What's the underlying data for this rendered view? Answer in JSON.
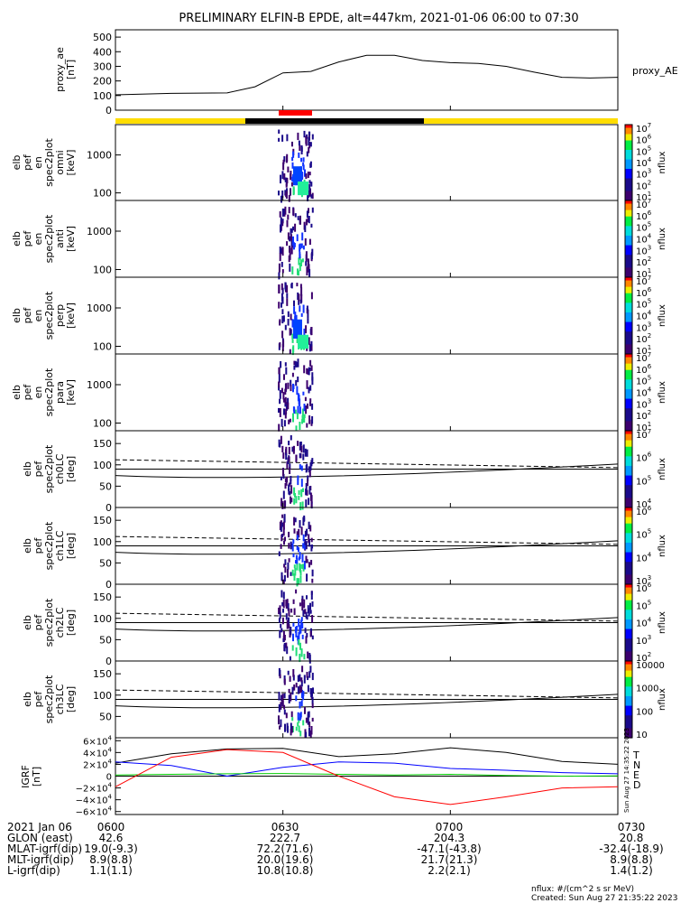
{
  "title": "PRELIMINARY ELFIN-B EPDE, alt=447km, 2021-01-06 06:00 to 07:30",
  "colors": {
    "bar_yellow": "#ffdd00",
    "bar_black": "#000000",
    "bar_red": "#ff0000",
    "blue": "#0000ff",
    "green": "#00cc00",
    "red": "#ff0000"
  },
  "chart_data": [
    {
      "type": "line",
      "name": "proxy_ae",
      "ylabel_lines": [
        "proxy_ae",
        "[nT]"
      ],
      "legend": "proxy_AE",
      "ylim": [
        0,
        550
      ],
      "yticks": [
        "500",
        "400",
        "300",
        "200",
        "100",
        "0"
      ],
      "x_min": [
        0,
        10,
        20,
        25,
        30,
        35,
        40,
        45,
        50,
        55,
        60,
        65,
        70,
        75,
        80,
        85,
        90
      ],
      "values": [
        105,
        115,
        118,
        160,
        255,
        265,
        330,
        375,
        375,
        340,
        325,
        320,
        300,
        260,
        225,
        220,
        225
      ]
    },
    {
      "type": "heatmap",
      "name": "spec2plot omni",
      "ylabel_lines": [
        "elb",
        "pef",
        "en",
        "spec2plot",
        "omni",
        "[keV]"
      ],
      "yticks": [
        "1000",
        "100"
      ],
      "cbar_ticks": [
        "10^7",
        "10^6",
        "10^5",
        "10^4",
        "10^3",
        "10^2",
        "10^1"
      ],
      "cbar_label": "nflux"
    },
    {
      "type": "heatmap",
      "name": "spec2plot anti",
      "ylabel_lines": [
        "elb",
        "pef",
        "en",
        "spec2plot",
        "anti",
        "[keV]"
      ],
      "yticks": [
        "1000",
        "100"
      ],
      "cbar_ticks": [
        "10^7",
        "10^6",
        "10^5",
        "10^4",
        "10^3",
        "10^2",
        "10^1"
      ],
      "cbar_label": "nflux"
    },
    {
      "type": "heatmap",
      "name": "spec2plot perp",
      "ylabel_lines": [
        "elb",
        "pef",
        "en",
        "spec2plot",
        "perp",
        "[keV]"
      ],
      "yticks": [
        "1000",
        "100"
      ],
      "cbar_ticks": [
        "10^7",
        "10^6",
        "10^5",
        "10^4",
        "10^3",
        "10^2",
        "10^1"
      ],
      "cbar_label": "nflux"
    },
    {
      "type": "heatmap",
      "name": "spec2plot para",
      "ylabel_lines": [
        "elb",
        "pef",
        "en",
        "spec2plot",
        "para",
        "[keV]"
      ],
      "yticks": [
        "1000",
        "100"
      ],
      "cbar_ticks": [
        "10^7",
        "10^6",
        "10^5",
        "10^4",
        "10^3",
        "10^2",
        "10^1"
      ],
      "cbar_label": "nflux"
    },
    {
      "type": "heatmap",
      "name": "spec2plot ch0LC",
      "ylabel_lines": [
        "elb",
        "pef",
        "spec2plot",
        "ch0LC",
        "[deg]"
      ],
      "yticks": [
        "150",
        "100",
        "50",
        "0"
      ],
      "cbar_ticks": [
        "10^7",
        "10^6",
        "10^5",
        "10^4"
      ],
      "cbar_label": "nflux"
    },
    {
      "type": "heatmap",
      "name": "spec2plot ch1LC",
      "ylabel_lines": [
        "elb",
        "pef",
        "spec2plot",
        "ch1LC",
        "[deg]"
      ],
      "yticks": [
        "150",
        "100",
        "50",
        "0"
      ],
      "cbar_ticks": [
        "10^6",
        "10^5",
        "10^4",
        "10^3"
      ],
      "cbar_label": "nflux"
    },
    {
      "type": "heatmap",
      "name": "spec2plot ch2LC",
      "ylabel_lines": [
        "elb",
        "pef",
        "spec2plot",
        "ch2LC",
        "[deg]"
      ],
      "yticks": [
        "150",
        "100",
        "50",
        "0"
      ],
      "cbar_ticks": [
        "10^6",
        "10^5",
        "10^4",
        "10^3",
        "10^2"
      ],
      "cbar_label": "nflux"
    },
    {
      "type": "heatmap",
      "name": "spec2plot ch3LC",
      "ylabel_lines": [
        "elb",
        "pef",
        "spec2plot",
        "ch3LC",
        "[deg]"
      ],
      "yticks": [
        "150",
        "100",
        "50"
      ],
      "cbar_ticks": [
        "10000",
        "1000",
        "100",
        "10"
      ],
      "cbar_label": "nflux"
    },
    {
      "type": "line",
      "name": "IGRF",
      "ylabel_lines": [
        "IGRF",
        "[nT]"
      ],
      "ylim": [
        -65000,
        65000
      ],
      "yticks": [
        "6×10^4",
        "4×10^4",
        "2×10^4",
        "0",
        "−2×10^4",
        "−4×10^4",
        "−6×10^4"
      ],
      "legend": [
        "T",
        "N",
        "E",
        "D"
      ],
      "x_min": [
        0,
        10,
        20,
        30,
        40,
        50,
        60,
        70,
        80,
        90
      ],
      "series": [
        {
          "name": "T",
          "color": "#000000",
          "values": [
            22000,
            38000,
            46000,
            47000,
            33000,
            38000,
            48000,
            40000,
            25000,
            20000
          ]
        },
        {
          "name": "N",
          "color": "#0000ff",
          "values": [
            24000,
            18000,
            0,
            15000,
            24000,
            22000,
            13000,
            10000,
            6000,
            4000
          ]
        },
        {
          "name": "E",
          "color": "#00cc00",
          "values": [
            2000,
            3000,
            4000,
            4500,
            3000,
            2000,
            3000,
            1000,
            0,
            500
          ]
        },
        {
          "name": "D",
          "color": "#ff0000",
          "values": [
            -18000,
            32000,
            45000,
            40000,
            0,
            -35000,
            -48000,
            -35000,
            -20000,
            -18000
          ]
        }
      ]
    }
  ],
  "x_axis": {
    "rows": [
      {
        "label": "2021 Jan 06",
        "values": [
          "0600",
          "0630",
          "0700",
          "0730"
        ]
      },
      {
        "label": "GLON (east)",
        "values": [
          "42.6",
          "222.7",
          "204.3",
          "20.8"
        ]
      },
      {
        "label": "MLAT-igrf(dip)",
        "values": [
          "19.0(-9.3)",
          "72.2(71.6)",
          "-47.1(-43.8)",
          "-32.4(-18.9)"
        ]
      },
      {
        "label": "MLT-igrf(dip)",
        "values": [
          "8.9(8.8)",
          "20.0(19.6)",
          "21.7(21.3)",
          "8.9(8.8)"
        ]
      },
      {
        "label": "L-igrf(dip)",
        "values": [
          "1.1(1.1)",
          "10.8(10.8)",
          "2.2(2.1)",
          "1.4(1.2)"
        ]
      }
    ]
  },
  "timestamp_vertical": "Sun Aug 27 14:35:22 2023",
  "footer": {
    "units": "nflux: #/(cm^2 s sr MeV)",
    "created": "Created: Sun Aug 27 21:35:22 2023"
  }
}
